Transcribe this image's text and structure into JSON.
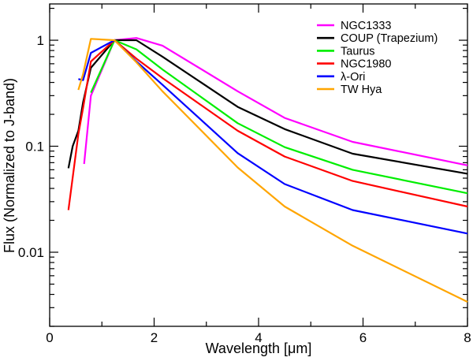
{
  "chart_data": {
    "type": "line",
    "title": "",
    "xlabel": "Wavelength [μm]",
    "ylabel": "Flux (Normalized to J-band)",
    "xlim": [
      0,
      8
    ],
    "ylim": [
      0.002,
      2.2
    ],
    "yscale": "log",
    "xticks": [
      0,
      2,
      4,
      6,
      8
    ],
    "xtick_labels": [
      "0",
      "2",
      "4",
      "6",
      "8"
    ],
    "yticks": [
      0.01,
      0.1,
      1
    ],
    "ytick_labels": [
      "0.01",
      "0.1",
      "1"
    ],
    "grid": false,
    "legend_position": "top-right",
    "series": [
      {
        "name": "NGC1333",
        "color": "#ff00ff",
        "x": [
          0.66,
          0.79,
          1.24,
          1.66,
          2.16,
          3.6,
          4.5,
          5.8,
          8.0
        ],
        "y": [
          0.068,
          0.3,
          1.0,
          1.05,
          0.89,
          0.33,
          0.185,
          0.11,
          0.066
        ]
      },
      {
        "name": "COUP (Trapezium)",
        "color": "#000000",
        "x": [
          0.36,
          0.44,
          0.55,
          0.64,
          0.79,
          1.24,
          1.66,
          2.16,
          3.6,
          4.5,
          5.8,
          8.0
        ],
        "y": [
          0.062,
          0.1,
          0.14,
          0.26,
          0.55,
          1.0,
          1.0,
          0.7,
          0.235,
          0.145,
          0.085,
          0.055
        ]
      },
      {
        "name": "Taurus",
        "color": "#00ee00",
        "x": [
          0.79,
          1.24,
          1.66,
          2.16,
          3.6,
          4.5,
          5.8,
          8.0
        ],
        "y": [
          0.32,
          1.0,
          0.82,
          0.53,
          0.165,
          0.098,
          0.06,
          0.036
        ]
      },
      {
        "name": "NGC1980",
        "color": "#ff0000",
        "x": [
          0.36,
          0.55,
          0.64,
          0.79,
          1.24,
          1.66,
          2.16,
          3.6,
          4.5,
          5.8,
          8.0
        ],
        "y": [
          0.025,
          0.13,
          0.23,
          0.63,
          1.0,
          0.67,
          0.44,
          0.14,
          0.08,
          0.047,
          0.027
        ]
      },
      {
        "name": "λ-Ori",
        "color": "#0000ff",
        "x": [
          0.55,
          0.64,
          0.79,
          1.24,
          1.66,
          2.16,
          3.6,
          4.5,
          5.8,
          8.0
        ],
        "y": [
          0.43,
          0.42,
          0.76,
          1.0,
          0.63,
          0.38,
          0.086,
          0.044,
          0.025,
          0.015
        ]
      },
      {
        "name": "TW Hya",
        "color": "#ffa500",
        "x": [
          0.55,
          0.64,
          0.79,
          1.24,
          1.66,
          2.16,
          3.6,
          4.5,
          5.8,
          8.0
        ],
        "y": [
          0.34,
          0.48,
          1.03,
          1.0,
          0.62,
          0.33,
          0.063,
          0.027,
          0.0115,
          0.0034
        ]
      }
    ]
  }
}
